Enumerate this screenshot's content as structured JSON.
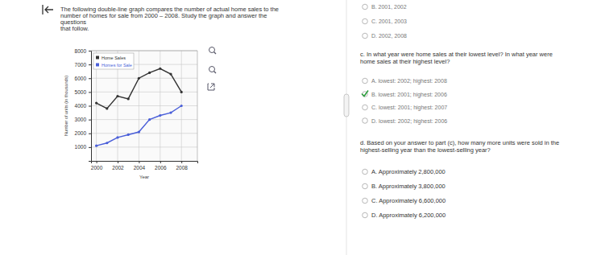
{
  "chart_data": {
    "type": "line",
    "x": [
      2000,
      2001,
      2002,
      2003,
      2004,
      2005,
      2006,
      2007,
      2008
    ],
    "series": [
      {
        "name": "Home Sales",
        "color": "#333333",
        "marker": "circle",
        "values": [
          4200,
          3800,
          4700,
          4500,
          6000,
          6400,
          6700,
          6300,
          5000
        ]
      },
      {
        "name": "Homes for Sale",
        "color": "#4a5fd9",
        "marker": "circle",
        "values": [
          1100,
          1300,
          1700,
          1900,
          2100,
          3000,
          3300,
          3500,
          4000
        ]
      }
    ],
    "xlabel": "Year",
    "ylabel": "Number of units (in thousands)",
    "xlim": [
      1999.5,
      2009.5
    ],
    "xticks": [
      2000,
      2002,
      2004,
      2006,
      2008
    ],
    "ylim": [
      0,
      8000
    ],
    "yticks": [
      1000,
      2000,
      3000,
      4000,
      5000,
      6000,
      7000,
      8000
    ],
    "grid": true,
    "legend": "upper left"
  },
  "page": {
    "intro": [
      "The following double-line graph compares the number of actual home sales to the",
      "number of homes for sale from 2000 – 2008. Study the graph and answer the",
      "questions",
      "that follow."
    ],
    "part_b_options": [
      {
        "text": "B.  2001, 2002",
        "checked": false
      },
      {
        "text": "C.  2001, 2003",
        "checked": false
      },
      {
        "text": "D.  2002, 2008",
        "checked": false
      }
    ],
    "part_c_question": [
      "c. In what year were home sales at their lowest level? In what year were",
      "home sales at their highest level?"
    ],
    "part_c_options": [
      {
        "text": "A.  lowest: 2002; highest: 2008",
        "checked": false
      },
      {
        "text": "B.  lowest: 2001; highest: 2006",
        "checked": true
      },
      {
        "text": "C.  lowest: 2001; highest: 2007",
        "checked": false
      },
      {
        "text": "D.  lowest: 2002; highest: 2006",
        "checked": false
      }
    ],
    "part_d_question": [
      "d. Based on your answer to part (c), how many more units were sold in the",
      "highest-selling year than the lowest-selling year?"
    ],
    "part_d_options": [
      {
        "text": "A.  Approximately 2,800,000",
        "checked": false
      },
      {
        "text": "B.  Approximately 3,800,000",
        "checked": false
      },
      {
        "text": "C.  Approximately 6,600,000",
        "checked": false
      },
      {
        "text": "D.  Approximately 6,200,000",
        "checked": false
      }
    ]
  }
}
